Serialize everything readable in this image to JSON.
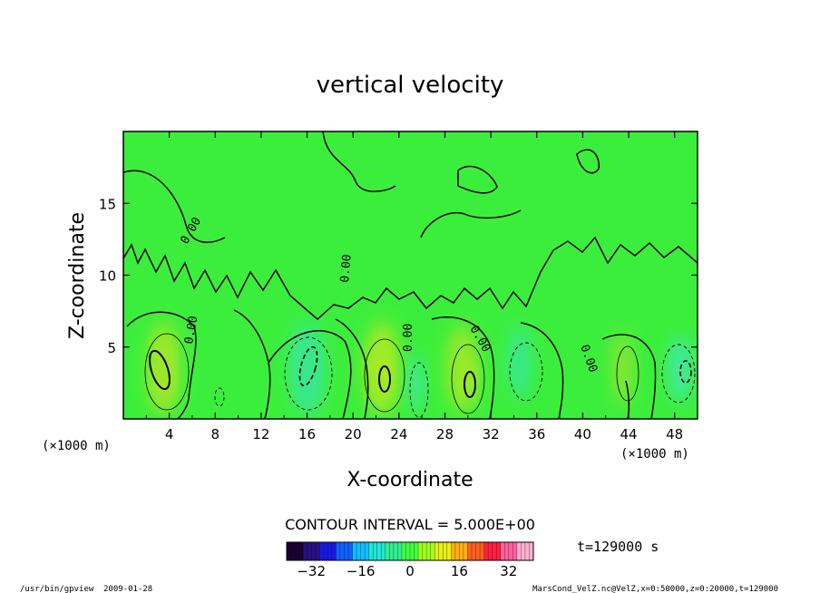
{
  "chart_data": {
    "type": "heatmap",
    "title": "vertical velocity",
    "xlabel": "X-coordinate",
    "ylabel": "Z-coordinate",
    "x_unit_left": "(×1000 m)",
    "x_unit_right": "(×1000 m)",
    "xlim": [
      0,
      50
    ],
    "ylim": [
      0,
      20
    ],
    "xticks": [
      4,
      8,
      12,
      16,
      20,
      24,
      28,
      32,
      36,
      40,
      44,
      48
    ],
    "yticks": [
      5,
      10,
      15
    ],
    "contour_label": "0.00",
    "contour_interval_text": "CONTOUR INTERVAL = 5.000E+00",
    "time_text": "t=129000 s",
    "colorbar": {
      "range": [
        -40,
        40
      ],
      "ticks": [
        -32,
        -16,
        0,
        16,
        32
      ],
      "colors": [
        "#1a0033",
        "#2a1080",
        "#1a1ae0",
        "#1060ff",
        "#10c0ff",
        "#20e8d8",
        "#30f090",
        "#40ff40",
        "#a0ff20",
        "#e8f010",
        "#ffb010",
        "#ff6020",
        "#ff2040",
        "#ff60a0",
        "#ffb0d0"
      ]
    },
    "cells": [
      {
        "x": 3.5,
        "z": 3.5,
        "w": 1.3,
        "h": 4.5,
        "value": 12,
        "color": "#d8f020"
      },
      {
        "x": 3.5,
        "z": 3.5,
        "w": 2.8,
        "h": 6.5,
        "value": 6,
        "color": "#9ae82a"
      },
      {
        "x": 16.0,
        "z": 3.5,
        "w": 1.6,
        "h": 4.5,
        "value": -14,
        "color": "#40e8c0"
      },
      {
        "x": 16.0,
        "z": 3.5,
        "w": 3.0,
        "h": 6.5,
        "value": -7,
        "color": "#38e88a"
      },
      {
        "x": 22.5,
        "z": 3.5,
        "w": 1.2,
        "h": 3.0,
        "value": 14,
        "color": "#e0f018"
      },
      {
        "x": 22.5,
        "z": 3.5,
        "w": 3.0,
        "h": 6.5,
        "value": 7,
        "color": "#a4ea28"
      },
      {
        "x": 25.5,
        "z": 2.5,
        "w": 1.2,
        "h": 4.0,
        "value": -8,
        "color": "#40e8a8"
      },
      {
        "x": 30.0,
        "z": 2.8,
        "w": 1.0,
        "h": 2.5,
        "value": 12,
        "color": "#d8f020"
      },
      {
        "x": 29.5,
        "z": 3.5,
        "w": 2.8,
        "h": 6.0,
        "value": 6,
        "color": "#9ae82a"
      },
      {
        "x": 34.5,
        "z": 4.0,
        "w": 2.0,
        "h": 5.0,
        "value": -6,
        "color": "#38e890"
      },
      {
        "x": 43.5,
        "z": 3.5,
        "w": 1.8,
        "h": 5.0,
        "value": 5,
        "color": "#8ae630"
      },
      {
        "x": 48.5,
        "z": 3.5,
        "w": 1.8,
        "h": 4.5,
        "value": -9,
        "color": "#40e8b0"
      }
    ]
  },
  "footer": {
    "program": "/usr/bin/gpview",
    "date": "2009-01-28",
    "source": "MarsCond_VelZ.nc@VelZ,x=0:50000,z=0:20000,t=129000"
  }
}
